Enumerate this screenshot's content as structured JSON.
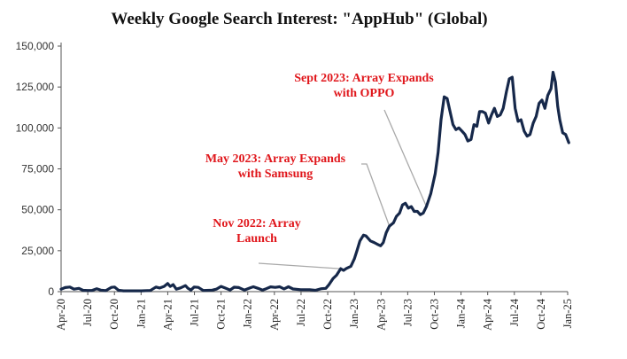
{
  "chart_data": {
    "type": "line",
    "title": "Weekly Google Search Interest: \"AppHub\" (Global)",
    "xlabel": "",
    "ylabel": "",
    "ylim": [
      0,
      150000
    ],
    "yticks": [
      0,
      25000,
      50000,
      75000,
      100000,
      125000,
      150000
    ],
    "ytick_labels": [
      "0",
      "25,000",
      "50,000",
      "75,000",
      "100,000",
      "125,000",
      "150,000"
    ],
    "xticks": [
      "Apr-20",
      "Jul-20",
      "Oct-20",
      "Jan-21",
      "Apr-21",
      "Jul-21",
      "Oct-21",
      "Jan-22",
      "Apr-22",
      "Jul-22",
      "Oct-22",
      "Jan-23",
      "Apr-23",
      "Jul-23",
      "Oct-23",
      "Jan-24",
      "Apr-24",
      "Jul-24",
      "Oct-24",
      "Jan-25"
    ],
    "grid": false,
    "series": [
      {
        "name": "",
        "color": "#16284a",
        "points": [
          [
            "2020-04-01",
            1500
          ],
          [
            "2020-04-15",
            2500
          ],
          [
            "2020-05-01",
            2800
          ],
          [
            "2020-05-15",
            1500
          ],
          [
            "2020-06-01",
            2000
          ],
          [
            "2020-06-15",
            800
          ],
          [
            "2020-07-01",
            700
          ],
          [
            "2020-07-15",
            700
          ],
          [
            "2020-08-01",
            1800
          ],
          [
            "2020-08-15",
            900
          ],
          [
            "2020-09-01",
            600
          ],
          [
            "2020-09-20",
            2600
          ],
          [
            "2020-10-01",
            2800
          ],
          [
            "2020-10-15",
            800
          ],
          [
            "2020-11-01",
            500
          ],
          [
            "2020-12-01",
            500
          ],
          [
            "2021-01-01",
            500
          ],
          [
            "2021-02-01",
            700
          ],
          [
            "2021-02-20",
            2800
          ],
          [
            "2021-03-05",
            2200
          ],
          [
            "2021-03-20",
            3200
          ],
          [
            "2021-04-01",
            5000
          ],
          [
            "2021-04-10",
            3200
          ],
          [
            "2021-04-20",
            4300
          ],
          [
            "2021-05-01",
            1500
          ],
          [
            "2021-05-15",
            2300
          ],
          [
            "2021-06-01",
            3700
          ],
          [
            "2021-06-10",
            2000
          ],
          [
            "2021-06-20",
            1000
          ],
          [
            "2021-07-01",
            2800
          ],
          [
            "2021-07-15",
            2600
          ],
          [
            "2021-08-01",
            700
          ],
          [
            "2021-09-01",
            900
          ],
          [
            "2021-09-15",
            1500
          ],
          [
            "2021-10-01",
            3200
          ],
          [
            "2021-10-15",
            2200
          ],
          [
            "2021-11-01",
            1000
          ],
          [
            "2021-11-15",
            2700
          ],
          [
            "2021-12-01",
            2500
          ],
          [
            "2021-12-20",
            1000
          ],
          [
            "2022-01-10",
            2400
          ],
          [
            "2022-01-20",
            3000
          ],
          [
            "2022-02-05",
            2000
          ],
          [
            "2022-02-20",
            1000
          ],
          [
            "2022-03-05",
            1800
          ],
          [
            "2022-03-20",
            2900
          ],
          [
            "2022-04-05",
            2600
          ],
          [
            "2022-04-20",
            3000
          ],
          [
            "2022-05-05",
            1700
          ],
          [
            "2022-05-20",
            3000
          ],
          [
            "2022-06-05",
            1600
          ],
          [
            "2022-07-01",
            1200
          ],
          [
            "2022-08-01",
            1200
          ],
          [
            "2022-08-20",
            800
          ],
          [
            "2022-09-10",
            1800
          ],
          [
            "2022-09-25",
            2000
          ],
          [
            "2022-10-05",
            4000
          ],
          [
            "2022-10-20",
            8000
          ],
          [
            "2022-11-01",
            10000
          ],
          [
            "2022-11-15",
            14000
          ],
          [
            "2022-11-25",
            13000
          ],
          [
            "2022-12-05",
            14200
          ],
          [
            "2022-12-20",
            15500
          ],
          [
            "2023-01-01",
            20000
          ],
          [
            "2023-01-10",
            25000
          ],
          [
            "2023-01-20",
            31000
          ],
          [
            "2023-02-01",
            34500
          ],
          [
            "2023-02-10",
            34000
          ],
          [
            "2023-02-25",
            31000
          ],
          [
            "2023-03-10",
            30000
          ],
          [
            "2023-03-20",
            29000
          ],
          [
            "2023-04-01",
            28000
          ],
          [
            "2023-04-10",
            30000
          ],
          [
            "2023-04-20",
            36000
          ],
          [
            "2023-05-01",
            40000
          ],
          [
            "2023-05-15",
            42000
          ],
          [
            "2023-05-25",
            46000
          ],
          [
            "2023-06-05",
            48000
          ],
          [
            "2023-06-15",
            53000
          ],
          [
            "2023-06-25",
            54000
          ],
          [
            "2023-07-05",
            51000
          ],
          [
            "2023-07-15",
            52000
          ],
          [
            "2023-07-25",
            49000
          ],
          [
            "2023-08-05",
            49000
          ],
          [
            "2023-08-15",
            47000
          ],
          [
            "2023-08-25",
            48000
          ],
          [
            "2023-09-05",
            52000
          ],
          [
            "2023-09-20",
            60000
          ],
          [
            "2023-10-05",
            72000
          ],
          [
            "2023-10-15",
            85000
          ],
          [
            "2023-10-25",
            105000
          ],
          [
            "2023-11-05",
            119000
          ],
          [
            "2023-11-15",
            118000
          ],
          [
            "2023-11-25",
            110000
          ],
          [
            "2023-12-05",
            102000
          ],
          [
            "2023-12-15",
            99000
          ],
          [
            "2023-12-25",
            100000
          ],
          [
            "2024-01-05",
            98000
          ],
          [
            "2024-01-15",
            96000
          ],
          [
            "2024-01-25",
            92000
          ],
          [
            "2024-02-05",
            93000
          ],
          [
            "2024-02-15",
            102000
          ],
          [
            "2024-02-25",
            101000
          ],
          [
            "2024-03-05",
            110000
          ],
          [
            "2024-03-15",
            110000
          ],
          [
            "2024-03-25",
            109000
          ],
          [
            "2024-04-05",
            103000
          ],
          [
            "2024-04-15",
            108000
          ],
          [
            "2024-04-25",
            112000
          ],
          [
            "2024-05-05",
            107000
          ],
          [
            "2024-05-15",
            108000
          ],
          [
            "2024-05-25",
            112000
          ],
          [
            "2024-06-05",
            122000
          ],
          [
            "2024-06-15",
            130000
          ],
          [
            "2024-06-25",
            131000
          ],
          [
            "2024-07-05",
            112000
          ],
          [
            "2024-07-15",
            104000
          ],
          [
            "2024-07-25",
            105000
          ],
          [
            "2024-08-05",
            98000
          ],
          [
            "2024-08-15",
            95000
          ],
          [
            "2024-08-25",
            96000
          ],
          [
            "2024-09-05",
            103000
          ],
          [
            "2024-09-15",
            107000
          ],
          [
            "2024-09-25",
            115000
          ],
          [
            "2024-10-05",
            117000
          ],
          [
            "2024-10-15",
            112000
          ],
          [
            "2024-10-25",
            120000
          ],
          [
            "2024-11-05",
            124000
          ],
          [
            "2024-11-12",
            134000
          ],
          [
            "2024-11-20",
            128000
          ],
          [
            "2024-11-28",
            113000
          ],
          [
            "2024-12-05",
            105000
          ],
          [
            "2024-12-15",
            97000
          ],
          [
            "2024-12-25",
            96000
          ],
          [
            "2025-01-05",
            91000
          ]
        ]
      }
    ],
    "annotations": [
      {
        "lines": [
          "Nov 2022: Array",
          "Launch"
        ],
        "target": [
          "2022-11-15",
          14000
        ]
      },
      {
        "lines": [
          "May 2023: Array Expands",
          "with Samsung"
        ],
        "target": [
          "2023-05-01",
          40000
        ]
      },
      {
        "lines": [
          "Sept 2023: Array Expands",
          "with OPPO"
        ],
        "target": [
          "2023-09-05",
          52000
        ]
      }
    ]
  }
}
